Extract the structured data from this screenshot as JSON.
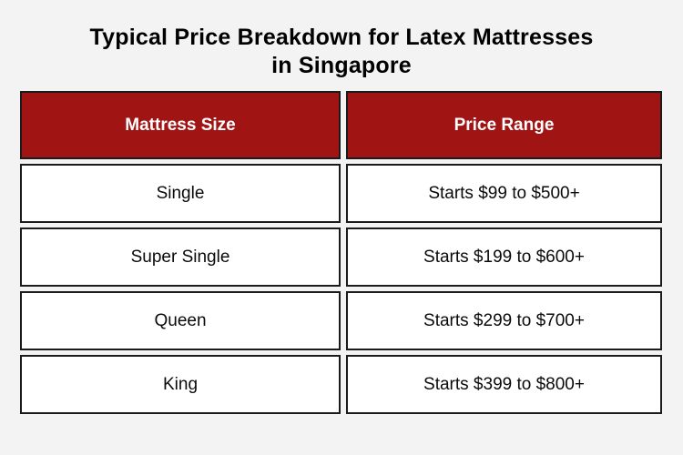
{
  "title": {
    "line1": "Typical Price Breakdown for Latex Mattresses",
    "line2": "in Singapore"
  },
  "table": {
    "headers": [
      "Mattress Size",
      "Price Range"
    ],
    "rows": [
      [
        "Single",
        "Starts $99 to $500+"
      ],
      [
        "Super Single",
        "Starts $199 to $600+"
      ],
      [
        "Queen",
        "Starts $299 to $700+"
      ],
      [
        "King",
        "Starts $399 to $800+"
      ]
    ]
  },
  "colors": {
    "page_bg": "#F3F3F3",
    "header_bg": "#A11414",
    "header_text": "#FFFFFF",
    "cell_bg": "#FFFFFF",
    "border": "#1B1B1B",
    "title_text": "#000000",
    "body_text": "#0A0A0A"
  },
  "chart_data": {
    "type": "table",
    "title": "Typical Price Breakdown for Latex Mattresses in Singapore",
    "columns": [
      "Mattress Size",
      "Price Range"
    ],
    "rows": [
      {
        "mattress_size": "Single",
        "price_range": "Starts $99 to $500+",
        "start_price_sgd": 99,
        "max_price_sgd": 500
      },
      {
        "mattress_size": "Super Single",
        "price_range": "Starts $199 to $600+",
        "start_price_sgd": 199,
        "max_price_sgd": 600
      },
      {
        "mattress_size": "Queen",
        "price_range": "Starts $299 to $700+",
        "start_price_sgd": 299,
        "max_price_sgd": 700
      },
      {
        "mattress_size": "King",
        "price_range": "Starts $399 to $800+",
        "start_price_sgd": 399,
        "max_price_sgd": 800
      }
    ],
    "layout": {
      "header_style": "dark-red-bar",
      "grid": "separated-bordered-cells"
    }
  }
}
